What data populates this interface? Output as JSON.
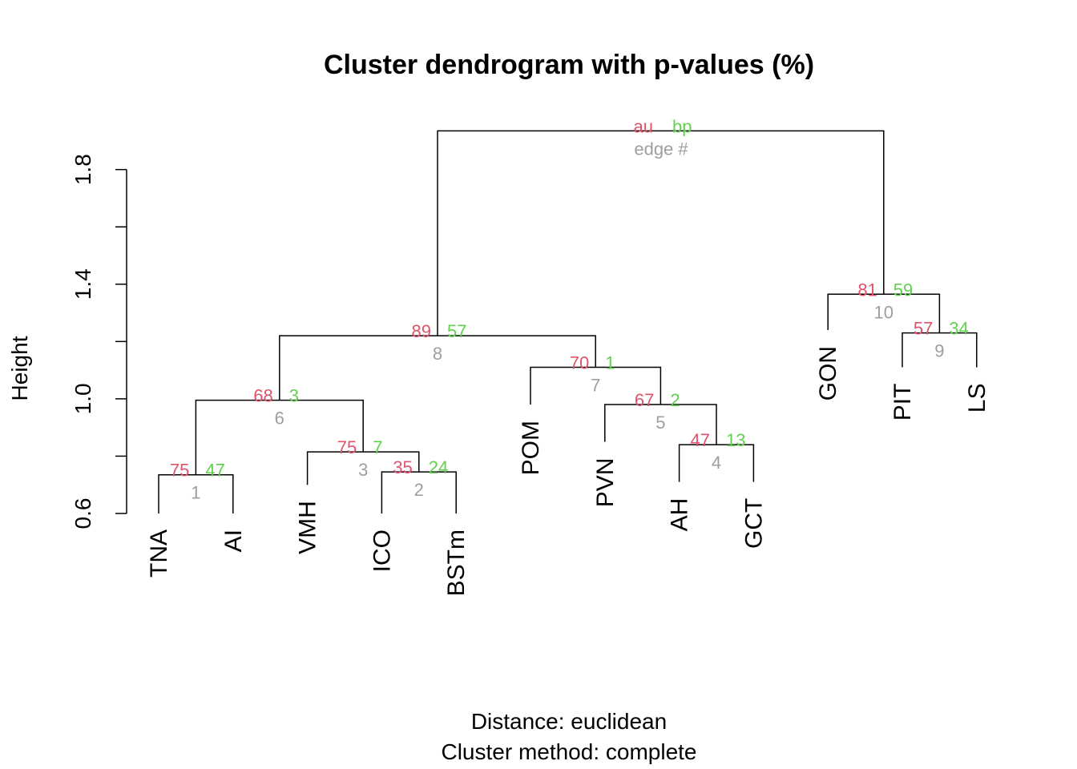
{
  "chart_data": {
    "type": "dendrogram",
    "title": "Cluster dendrogram with p-values (%)",
    "ylabel": "Height",
    "subtitle_lines": [
      "Distance:  euclidean",
      "Cluster method: complete"
    ],
    "ylim": [
      0.6,
      1.95
    ],
    "yticks": [
      0.6,
      0.8,
      1.0,
      1.2,
      1.4,
      1.6,
      1.8
    ],
    "ytick_labels": [
      {
        "value": 0.6,
        "label": "0.6"
      },
      {
        "value": 1.0,
        "label": "1.0"
      },
      {
        "value": 1.4,
        "label": "1.4"
      },
      {
        "value": 1.8,
        "label": "1.8"
      }
    ],
    "leaves": [
      {
        "id": "TNA",
        "label": "TNA",
        "height": 0.6
      },
      {
        "id": "AI",
        "label": "AI",
        "height": 0.6
      },
      {
        "id": "VMH",
        "label": "VMH",
        "height": 0.7
      },
      {
        "id": "ICO",
        "label": "ICO",
        "height": 0.6
      },
      {
        "id": "BSTm",
        "label": "BSTm",
        "height": 0.6
      },
      {
        "id": "POM",
        "label": "POM",
        "height": 0.98
      },
      {
        "id": "PVN",
        "label": "PVN",
        "height": 0.85
      },
      {
        "id": "AH",
        "label": "AH",
        "height": 0.71
      },
      {
        "id": "GCT",
        "label": "GCT",
        "height": 0.71
      },
      {
        "id": "GON",
        "label": "GON",
        "height": 1.24
      },
      {
        "id": "PIT",
        "label": "PIT",
        "height": 1.11
      },
      {
        "id": "LS",
        "label": "LS",
        "height": 1.11
      }
    ],
    "merges": [
      {
        "edge": 1,
        "left": "TNA",
        "right": "AI",
        "height": 0.735,
        "au": 75,
        "bp": 47
      },
      {
        "edge": 2,
        "left": "ICO",
        "right": "BSTm",
        "height": 0.745,
        "au": 35,
        "bp": 24
      },
      {
        "edge": 3,
        "left": "VMH",
        "right": 2,
        "height": 0.815,
        "au": 75,
        "bp": 7
      },
      {
        "edge": 4,
        "left": "AH",
        "right": "GCT",
        "height": 0.84,
        "au": 47,
        "bp": 13
      },
      {
        "edge": 5,
        "left": "PVN",
        "right": 4,
        "height": 0.98,
        "au": 67,
        "bp": 2
      },
      {
        "edge": 6,
        "left": 1,
        "right": 3,
        "height": 0.995,
        "au": 68,
        "bp": 3
      },
      {
        "edge": 7,
        "left": "POM",
        "right": 5,
        "height": 1.11,
        "au": 70,
        "bp": 1
      },
      {
        "edge": 8,
        "left": 6,
        "right": 7,
        "height": 1.22,
        "au": 89,
        "bp": 57
      },
      {
        "edge": 9,
        "left": "PIT",
        "right": "LS",
        "height": 1.23,
        "au": 57,
        "bp": 34
      },
      {
        "edge": 10,
        "left": "GON",
        "right": 9,
        "height": 1.365,
        "au": 81,
        "bp": 59
      },
      {
        "edge": 11,
        "left": 8,
        "right": 10,
        "height": 1.935,
        "au": null,
        "bp": null
      }
    ],
    "root_legend": {
      "au": "au",
      "bp": "bp",
      "edge": "edge #"
    },
    "colors": {
      "au": "#DF536B",
      "bp": "#61D04F",
      "edge": "#9E9E9E",
      "line": "#000000"
    }
  }
}
